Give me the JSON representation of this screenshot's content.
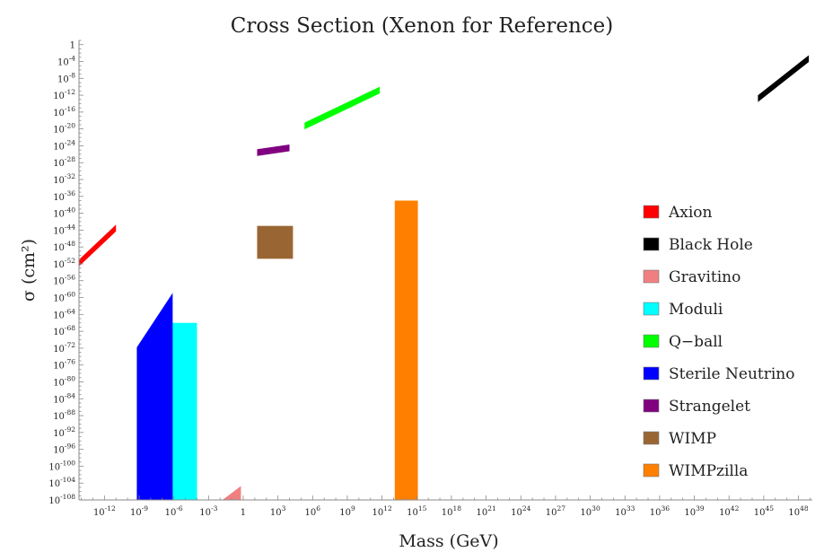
{
  "chart_data": {
    "type": "area",
    "title": "Cross Section (Xenon for Reference)",
    "xlabel": "Mass (GeV)",
    "ylabel": "σ (cm²)",
    "x_scale": "log10",
    "y_scale": "log10",
    "xlim_log10": [
      -14.2,
      49.2
    ],
    "ylim_log10": [
      -108,
      1
    ],
    "x_ticks": [
      {
        "exp": -12,
        "label": "10^{-12}"
      },
      {
        "exp": -9,
        "label": "10^{-9}"
      },
      {
        "exp": -6,
        "label": "10^{-6}"
      },
      {
        "exp": -3,
        "label": "10^{-3}"
      },
      {
        "exp": 0,
        "label": "1"
      },
      {
        "exp": 3,
        "label": "10^{3}"
      },
      {
        "exp": 6,
        "label": "10^{6}"
      },
      {
        "exp": 9,
        "label": "10^{9}"
      },
      {
        "exp": 12,
        "label": "10^{12}"
      },
      {
        "exp": 15,
        "label": "10^{15}"
      },
      {
        "exp": 18,
        "label": "10^{18}"
      },
      {
        "exp": 21,
        "label": "10^{21}"
      },
      {
        "exp": 24,
        "label": "10^{24}"
      },
      {
        "exp": 27,
        "label": "10^{27}"
      },
      {
        "exp": 30,
        "label": "10^{30}"
      },
      {
        "exp": 33,
        "label": "10^{33}"
      },
      {
        "exp": 36,
        "label": "10^{36}"
      },
      {
        "exp": 39,
        "label": "10^{39}"
      },
      {
        "exp": 42,
        "label": "10^{42}"
      },
      {
        "exp": 45,
        "label": "10^{45}"
      },
      {
        "exp": 48,
        "label": "10^{48}"
      }
    ],
    "y_ticks": [
      {
        "exp": 0,
        "label": "1"
      },
      {
        "exp": -4,
        "label": "10^{-4}"
      },
      {
        "exp": -8,
        "label": "10^{-8}"
      },
      {
        "exp": -12,
        "label": "10^{-12}"
      },
      {
        "exp": -16,
        "label": "10^{-16}"
      },
      {
        "exp": -20,
        "label": "10^{-20}"
      },
      {
        "exp": -24,
        "label": "10^{-24}"
      },
      {
        "exp": -28,
        "label": "10^{-28}"
      },
      {
        "exp": -32,
        "label": "10^{-32}"
      },
      {
        "exp": -36,
        "label": "10^{-36}"
      },
      {
        "exp": -40,
        "label": "10^{-40}"
      },
      {
        "exp": -44,
        "label": "10^{-44}"
      },
      {
        "exp": -48,
        "label": "10^{-48}"
      },
      {
        "exp": -52,
        "label": "10^{-52}"
      },
      {
        "exp": -56,
        "label": "10^{-56}"
      },
      {
        "exp": -60,
        "label": "10^{-60}"
      },
      {
        "exp": -64,
        "label": "10^{-64}"
      },
      {
        "exp": -68,
        "label": "10^{-68}"
      },
      {
        "exp": -72,
        "label": "10^{-72}"
      },
      {
        "exp": -76,
        "label": "10^{-76}"
      },
      {
        "exp": -80,
        "label": "10^{-80}"
      },
      {
        "exp": -84,
        "label": "10^{-84}"
      },
      {
        "exp": -88,
        "label": "10^{-88}"
      },
      {
        "exp": -92,
        "label": "10^{-92}"
      },
      {
        "exp": -96,
        "label": "10^{-96}"
      },
      {
        "exp": -100,
        "label": "10^{-100}"
      },
      {
        "exp": -104,
        "label": "10^{-104}"
      },
      {
        "exp": -108,
        "label": "10^{-108}"
      }
    ],
    "series": [
      {
        "name": "Axion",
        "color": "#ff0000",
        "shape": "band",
        "points_log10": [
          [
            -14.2,
            -51.8
          ],
          [
            -11,
            -43.5
          ]
        ],
        "thickness_log10": 1.6
      },
      {
        "name": "Black Hole",
        "color": "#000000",
        "shape": "band",
        "points_log10": [
          [
            44.5,
            -12.8
          ],
          [
            48.9,
            -3.3
          ]
        ],
        "thickness_log10": 1.6
      },
      {
        "name": "Gravitino",
        "color": "#f08080",
        "shape": "polygon",
        "points_log10": [
          [
            -1.8,
            -108
          ],
          [
            -0.2,
            -104.7
          ],
          [
            -0.2,
            -108
          ]
        ]
      },
      {
        "name": "Moduli",
        "color": "#00ffff",
        "shape": "rect",
        "x_log10": [
          -7.1,
          -4
        ],
        "y_log10": [
          -108,
          -66
        ]
      },
      {
        "name": "Q−ball",
        "color": "#00ff00",
        "shape": "band",
        "points_log10": [
          [
            5.3,
            -19.3
          ],
          [
            11.8,
            -10.8
          ]
        ],
        "thickness_log10": 1.6
      },
      {
        "name": "Sterile Neutrino",
        "color": "#0000ff",
        "shape": "polygon",
        "points_log10": [
          [
            -9.2,
            -108
          ],
          [
            -9.2,
            -71.8
          ],
          [
            -6.1,
            -58.9
          ],
          [
            -6.1,
            -108
          ]
        ]
      },
      {
        "name": "Strangelet",
        "color": "#800080",
        "shape": "band",
        "points_log10": [
          [
            1.2,
            -25.6
          ],
          [
            4,
            -24.5
          ]
        ],
        "thickness_log10": 1.6
      },
      {
        "name": "WIMP",
        "color": "#996633",
        "shape": "rect",
        "x_log10": [
          1.2,
          4.3
        ],
        "y_log10": [
          -50.8,
          -43
        ]
      },
      {
        "name": "WIMPzilla",
        "color": "#ff8000",
        "shape": "rect",
        "x_log10": [
          13.1,
          15.1
        ],
        "y_log10": [
          -108,
          -37
        ]
      }
    ],
    "legend_position": "right"
  }
}
